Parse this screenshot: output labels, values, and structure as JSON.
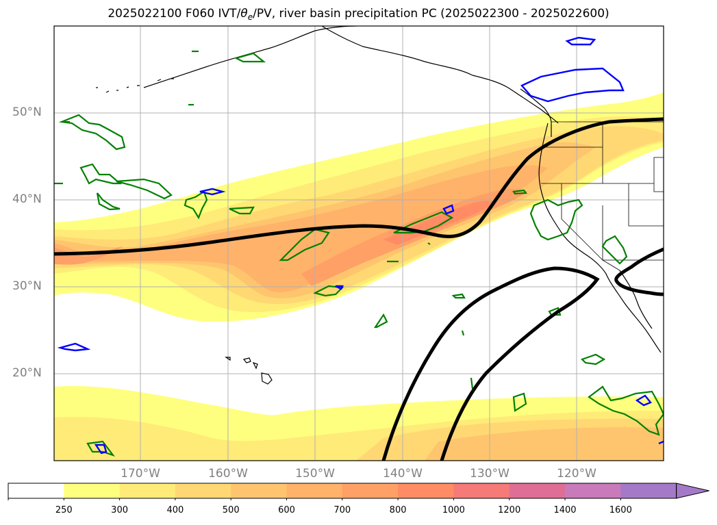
{
  "title": {
    "prefix": "2025022100 F060 IVT/",
    "theta": "θ",
    "theta_sub": "e",
    "suffix": "/PV, river basin precipitation PC (2025022300 - 2025022600)"
  },
  "axes": {
    "lat_labels": [
      "50°N",
      "40°N",
      "30°N",
      "20°N"
    ],
    "lon_labels": [
      "170°W",
      "160°W",
      "150°W",
      "140°W",
      "130°W",
      "120°W"
    ]
  },
  "colorbar": {
    "ticks": [
      "250",
      "300",
      "400",
      "500",
      "600",
      "700",
      "800",
      "1000",
      "1200",
      "1400",
      "1600"
    ],
    "colors": [
      "#ffffff",
      "#ffff7f",
      "#ffeb78",
      "#ffd873",
      "#ffc56e",
      "#ffb26a",
      "#ffa066",
      "#ff8c64",
      "#f57a78",
      "#de6e96",
      "#c87aba",
      "#a47ac8"
    ],
    "extend_arrow_color": "#a47ac8"
  },
  "legend_colors": {
    "coast": "#000000",
    "pv_contour": "#000000",
    "precip_green": "#008000",
    "precip_blue": "#0000ff",
    "grid": "#b0b0b0"
  }
}
